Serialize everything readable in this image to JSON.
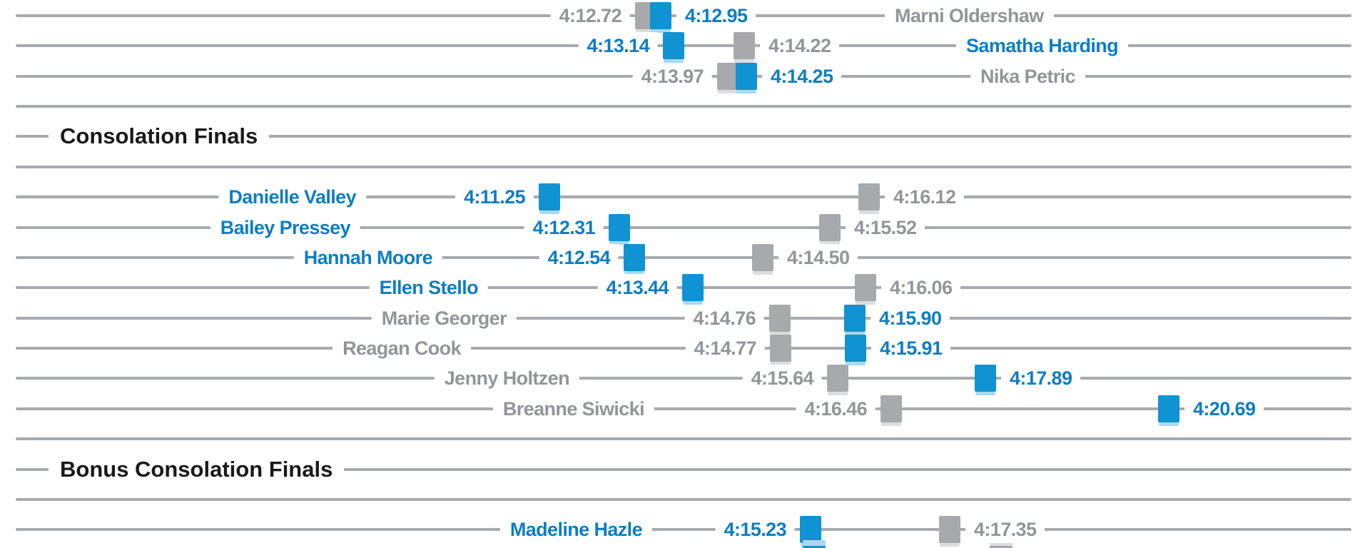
{
  "page": {
    "background": "#ffffff",
    "description": "Swim race results dumbbell chart: each athlete row shows a blue square time and a gray square time connected on a horizontal rule"
  },
  "colors": {
    "blue_square": "#0f93d2",
    "blue_text": "#0d7ec4",
    "gray_square": "#a7a9ac",
    "gray_text": "#939598",
    "row_line": "#a8aaad",
    "header_text": "#191919"
  },
  "chart_data": {
    "type": "dumbbell",
    "value_format": "m:ss.hh (race time)",
    "time_range_visible": [
      "4:11.25",
      "4:20.69"
    ],
    "grid": "one horizontal rule per row, full width",
    "marker": "square; blue and gray pair per athlete; time label sits beside its square in matching color; athlete name printed on the row in blue or gray",
    "section_headers": [
      "Consolation Finals",
      "Bonus Consolation Finals"
    ],
    "rows": [
      {
        "kind": "athlete",
        "name": "Marni Oldershaw",
        "name_side": "right",
        "gray_time": "4:12.72",
        "blue_time": "4:12.95"
      },
      {
        "kind": "athlete",
        "name": "Samatha Harding",
        "name_side": "right",
        "blue_time": "4:13.14",
        "gray_time": "4:14.22"
      },
      {
        "kind": "athlete",
        "name": "Nika Petric",
        "name_side": "right",
        "gray_time": "4:13.97",
        "blue_time": "4:14.25"
      },
      {
        "kind": "spacer"
      },
      {
        "kind": "header",
        "label": "Consolation Finals"
      },
      {
        "kind": "spacer"
      },
      {
        "kind": "athlete",
        "name": "Danielle Valley",
        "name_side": "left",
        "blue_time": "4:11.25",
        "gray_time": "4:16.12"
      },
      {
        "kind": "athlete",
        "name": "Bailey Pressey",
        "name_side": "left",
        "blue_time": "4:12.31",
        "gray_time": "4:15.52"
      },
      {
        "kind": "athlete",
        "name": "Hannah Moore",
        "name_side": "left",
        "blue_time": "4:12.54",
        "gray_time": "4:14.50"
      },
      {
        "kind": "athlete",
        "name": "Ellen Stello",
        "name_side": "left",
        "blue_time": "4:13.44",
        "gray_time": "4:16.06"
      },
      {
        "kind": "athlete",
        "name": "Marie Georger",
        "name_side": "left",
        "gray_time": "4:14.76",
        "blue_time": "4:15.90"
      },
      {
        "kind": "athlete",
        "name": "Reagan Cook",
        "name_side": "left",
        "gray_time": "4:14.77",
        "blue_time": "4:15.91"
      },
      {
        "kind": "athlete",
        "name": "Jenny Holtzen",
        "name_side": "left",
        "gray_time": "4:15.64",
        "blue_time": "4:17.89"
      },
      {
        "kind": "athlete",
        "name": "Breanne Siwicki",
        "name_side": "left",
        "gray_time": "4:16.46",
        "blue_time": "4:20.69"
      },
      {
        "kind": "spacer"
      },
      {
        "kind": "header",
        "label": "Bonus Consolation Finals"
      },
      {
        "kind": "spacer"
      },
      {
        "kind": "athlete",
        "name": "Madeline Hazle",
        "name_side": "left",
        "blue_time": "4:15.23",
        "gray_time": "4:17.35"
      },
      {
        "kind": "partial",
        "note": "next row squares cut off by bottom edge",
        "squares": [
          "blue",
          "gray"
        ]
      }
    ]
  }
}
